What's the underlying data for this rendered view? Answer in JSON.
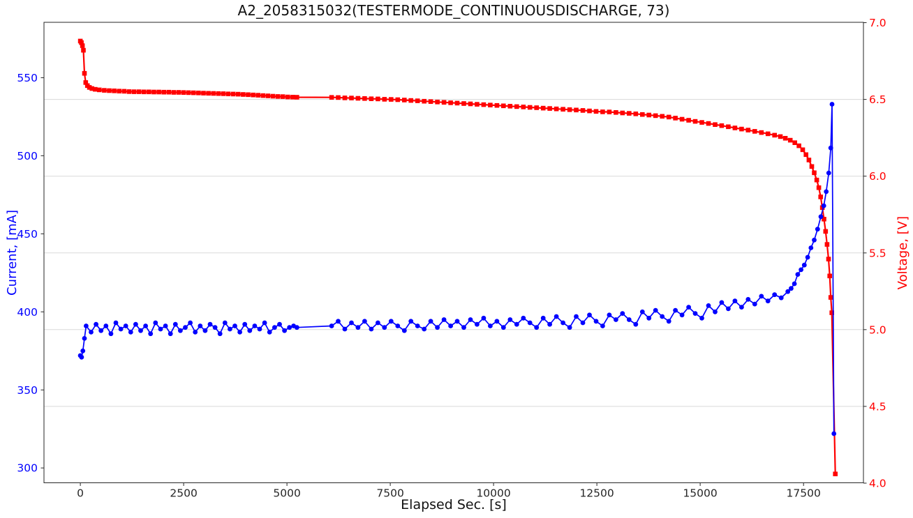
{
  "chart_data": {
    "type": "line",
    "title": "A2_2058315032(TESTERMODE_CONTINUOUSDISCHARGE, 73)",
    "xlabel": "Elapsed Sec. [s]",
    "legend": "none",
    "grid": {
      "orientation": "horizontal",
      "at_right_axis_values": [
        6.5,
        6.0,
        5.5,
        5.0,
        4.5
      ],
      "color": "#d9d9d9"
    },
    "x_axis": {
      "ticks": [
        0,
        2500,
        5000,
        7500,
        10000,
        12500,
        15000,
        17500
      ],
      "tick_labels": [
        "0",
        "2500",
        "5000",
        "7500",
        "10000",
        "12500",
        "15000",
        "17500"
      ],
      "lim": [
        -880,
        18950
      ],
      "color": "#262626"
    },
    "left_axis": {
      "label": "Current, [mA]",
      "color": "#0000ff",
      "ticks": [
        550,
        500,
        450,
        400,
        350,
        300
      ],
      "tick_labels": [
        "550",
        "500",
        "450",
        "400",
        "350",
        "300"
      ],
      "lim": [
        290.5,
        585.5
      ]
    },
    "right_axis": {
      "label": "Voltage, [V]",
      "color": "#ff0000",
      "ticks": [
        7.0,
        6.5,
        6.0,
        5.5,
        5.0,
        4.5,
        4.0
      ],
      "tick_labels": [
        "7.0",
        "6.5",
        "6.0",
        "5.5",
        "5.0",
        "4.5",
        "4.0"
      ],
      "lim": [
        4.0,
        7.0
      ]
    },
    "series": [
      {
        "name": "Voltage",
        "axis": "right",
        "color": "#ff0000",
        "marker": "square",
        "points": [
          [
            0,
            6.88
          ],
          [
            25,
            6.87
          ],
          [
            50,
            6.85
          ],
          [
            75,
            6.82
          ],
          [
            100,
            6.67
          ],
          [
            130,
            6.61
          ],
          [
            170,
            6.59
          ],
          [
            220,
            6.578
          ],
          [
            280,
            6.571
          ],
          [
            360,
            6.566
          ],
          [
            460,
            6.562
          ],
          [
            580,
            6.559
          ],
          [
            700,
            6.557
          ],
          [
            820,
            6.556
          ],
          [
            940,
            6.554
          ],
          [
            1060,
            6.553
          ],
          [
            1180,
            6.551
          ],
          [
            1300,
            6.55
          ],
          [
            1420,
            6.55
          ],
          [
            1540,
            6.549
          ],
          [
            1660,
            6.549
          ],
          [
            1780,
            6.548
          ],
          [
            1900,
            6.548
          ],
          [
            2020,
            6.547
          ],
          [
            2140,
            6.547
          ],
          [
            2260,
            6.546
          ],
          [
            2380,
            6.546
          ],
          [
            2500,
            6.545
          ],
          [
            2620,
            6.544
          ],
          [
            2740,
            6.543
          ],
          [
            2860,
            6.542
          ],
          [
            2980,
            6.541
          ],
          [
            3100,
            6.54
          ],
          [
            3220,
            6.539
          ],
          [
            3340,
            6.538
          ],
          [
            3460,
            6.537
          ],
          [
            3580,
            6.536
          ],
          [
            3700,
            6.535
          ],
          [
            3820,
            6.534
          ],
          [
            3940,
            6.532
          ],
          [
            4060,
            6.531
          ],
          [
            4180,
            6.529
          ],
          [
            4300,
            6.527
          ],
          [
            4420,
            6.525
          ],
          [
            4540,
            6.523
          ],
          [
            4660,
            6.521
          ],
          [
            4780,
            6.519
          ],
          [
            4900,
            6.518
          ],
          [
            5020,
            6.516
          ],
          [
            5140,
            6.515
          ],
          [
            5240,
            6.514
          ],
          [
            6080,
            6.513
          ],
          [
            6240,
            6.512
          ],
          [
            6400,
            6.51
          ],
          [
            6560,
            6.509
          ],
          [
            6720,
            6.507
          ],
          [
            6880,
            6.506
          ],
          [
            7040,
            6.504
          ],
          [
            7200,
            6.503
          ],
          [
            7360,
            6.501
          ],
          [
            7520,
            6.5
          ],
          [
            7680,
            6.498
          ],
          [
            7840,
            6.496
          ],
          [
            8000,
            6.493
          ],
          [
            8160,
            6.491
          ],
          [
            8320,
            6.488
          ],
          [
            8480,
            6.486
          ],
          [
            8640,
            6.483
          ],
          [
            8800,
            6.481
          ],
          [
            8960,
            6.478
          ],
          [
            9120,
            6.476
          ],
          [
            9280,
            6.473
          ],
          [
            9440,
            6.471
          ],
          [
            9600,
            6.468
          ],
          [
            9760,
            6.466
          ],
          [
            9920,
            6.463
          ],
          [
            10080,
            6.461
          ],
          [
            10240,
            6.458
          ],
          [
            10400,
            6.456
          ],
          [
            10560,
            6.453
          ],
          [
            10720,
            6.451
          ],
          [
            10880,
            6.448
          ],
          [
            11040,
            6.446
          ],
          [
            11200,
            6.443
          ],
          [
            11360,
            6.441
          ],
          [
            11520,
            6.438
          ],
          [
            11680,
            6.436
          ],
          [
            11840,
            6.433
          ],
          [
            12000,
            6.431
          ],
          [
            12160,
            6.428
          ],
          [
            12320,
            6.425
          ],
          [
            12480,
            6.422
          ],
          [
            12640,
            6.419
          ],
          [
            12800,
            6.418
          ],
          [
            12960,
            6.415
          ],
          [
            13120,
            6.412
          ],
          [
            13280,
            6.409
          ],
          [
            13440,
            6.406
          ],
          [
            13600,
            6.402
          ],
          [
            13760,
            6.398
          ],
          [
            13920,
            6.394
          ],
          [
            14080,
            6.39
          ],
          [
            14240,
            6.385
          ],
          [
            14400,
            6.378
          ],
          [
            14560,
            6.371
          ],
          [
            14720,
            6.364
          ],
          [
            14880,
            6.357
          ],
          [
            15040,
            6.35
          ],
          [
            15200,
            6.343
          ],
          [
            15360,
            6.336
          ],
          [
            15520,
            6.329
          ],
          [
            15680,
            6.322
          ],
          [
            15840,
            6.314
          ],
          [
            16000,
            6.307
          ],
          [
            16160,
            6.3
          ],
          [
            16320,
            6.292
          ],
          [
            16480,
            6.284
          ],
          [
            16640,
            6.276
          ],
          [
            16800,
            6.267
          ],
          [
            16940,
            6.258
          ],
          [
            17060,
            6.247
          ],
          [
            17180,
            6.234
          ],
          [
            17290,
            6.218
          ],
          [
            17390,
            6.198
          ],
          [
            17480,
            6.172
          ],
          [
            17560,
            6.14
          ],
          [
            17630,
            6.105
          ],
          [
            17700,
            6.063
          ],
          [
            17760,
            6.022
          ],
          [
            17820,
            5.975
          ],
          [
            17870,
            5.925
          ],
          [
            17915,
            5.865
          ],
          [
            17955,
            5.795
          ],
          [
            17995,
            5.72
          ],
          [
            18035,
            5.64
          ],
          [
            18070,
            5.555
          ],
          [
            18105,
            5.46
          ],
          [
            18135,
            5.35
          ],
          [
            18160,
            5.21
          ],
          [
            18185,
            5.11
          ],
          [
            18270,
            4.06
          ]
        ]
      },
      {
        "name": "Current",
        "axis": "left",
        "color": "#0000ff",
        "marker": "circle",
        "points": [
          [
            0,
            372
          ],
          [
            30,
            371
          ],
          [
            60,
            375
          ],
          [
            100,
            383
          ],
          [
            140,
            391
          ],
          [
            260,
            387
          ],
          [
            380,
            392
          ],
          [
            500,
            388
          ],
          [
            620,
            391
          ],
          [
            740,
            386
          ],
          [
            860,
            393
          ],
          [
            980,
            389
          ],
          [
            1100,
            391
          ],
          [
            1220,
            387
          ],
          [
            1340,
            392
          ],
          [
            1460,
            388
          ],
          [
            1580,
            391
          ],
          [
            1700,
            386
          ],
          [
            1820,
            393
          ],
          [
            1940,
            389
          ],
          [
            2060,
            391
          ],
          [
            2180,
            386
          ],
          [
            2300,
            392
          ],
          [
            2420,
            388
          ],
          [
            2540,
            390
          ],
          [
            2660,
            393
          ],
          [
            2780,
            387
          ],
          [
            2900,
            391
          ],
          [
            3020,
            388
          ],
          [
            3140,
            392
          ],
          [
            3260,
            390
          ],
          [
            3380,
            386
          ],
          [
            3500,
            393
          ],
          [
            3620,
            389
          ],
          [
            3740,
            391
          ],
          [
            3860,
            387
          ],
          [
            3980,
            392
          ],
          [
            4100,
            388
          ],
          [
            4220,
            391
          ],
          [
            4340,
            389
          ],
          [
            4460,
            393
          ],
          [
            4580,
            387
          ],
          [
            4700,
            390
          ],
          [
            4820,
            392
          ],
          [
            4940,
            388
          ],
          [
            5060,
            390
          ],
          [
            5160,
            391
          ],
          [
            5240,
            390
          ],
          [
            6080,
            391
          ],
          [
            6240,
            394
          ],
          [
            6400,
            389
          ],
          [
            6560,
            393
          ],
          [
            6720,
            390
          ],
          [
            6880,
            394
          ],
          [
            7040,
            389
          ],
          [
            7200,
            393
          ],
          [
            7360,
            390
          ],
          [
            7520,
            394
          ],
          [
            7680,
            391
          ],
          [
            7840,
            388
          ],
          [
            8000,
            394
          ],
          [
            8160,
            391
          ],
          [
            8320,
            389
          ],
          [
            8480,
            394
          ],
          [
            8640,
            390
          ],
          [
            8800,
            395
          ],
          [
            8960,
            391
          ],
          [
            9120,
            394
          ],
          [
            9280,
            390
          ],
          [
            9440,
            395
          ],
          [
            9600,
            392
          ],
          [
            9760,
            396
          ],
          [
            9920,
            391
          ],
          [
            10080,
            394
          ],
          [
            10240,
            390
          ],
          [
            10400,
            395
          ],
          [
            10560,
            392
          ],
          [
            10720,
            396
          ],
          [
            10880,
            393
          ],
          [
            11040,
            390
          ],
          [
            11200,
            396
          ],
          [
            11360,
            392
          ],
          [
            11520,
            397
          ],
          [
            11680,
            393
          ],
          [
            11840,
            390
          ],
          [
            12000,
            397
          ],
          [
            12160,
            393
          ],
          [
            12320,
            398
          ],
          [
            12480,
            394
          ],
          [
            12640,
            391
          ],
          [
            12800,
            398
          ],
          [
            12960,
            395
          ],
          [
            13120,
            399
          ],
          [
            13280,
            395
          ],
          [
            13440,
            392
          ],
          [
            13600,
            400
          ],
          [
            13760,
            396
          ],
          [
            13920,
            401
          ],
          [
            14080,
            397
          ],
          [
            14240,
            394
          ],
          [
            14400,
            401
          ],
          [
            14560,
            398
          ],
          [
            14720,
            403
          ],
          [
            14880,
            399
          ],
          [
            15040,
            396
          ],
          [
            15200,
            404
          ],
          [
            15360,
            400
          ],
          [
            15520,
            406
          ],
          [
            15680,
            402
          ],
          [
            15840,
            407
          ],
          [
            16000,
            403
          ],
          [
            16160,
            408
          ],
          [
            16320,
            405
          ],
          [
            16480,
            410
          ],
          [
            16640,
            407
          ],
          [
            16800,
            411
          ],
          [
            16960,
            409
          ],
          [
            17120,
            413
          ],
          [
            17200,
            415
          ],
          [
            17280,
            418
          ],
          [
            17360,
            424
          ],
          [
            17440,
            427
          ],
          [
            17520,
            430
          ],
          [
            17600,
            435
          ],
          [
            17680,
            441
          ],
          [
            17760,
            446
          ],
          [
            17840,
            453
          ],
          [
            17920,
            461
          ],
          [
            17990,
            468
          ],
          [
            18050,
            477
          ],
          [
            18110,
            489
          ],
          [
            18160,
            505
          ],
          [
            18190,
            533
          ],
          [
            18235,
            322
          ]
        ]
      }
    ]
  }
}
